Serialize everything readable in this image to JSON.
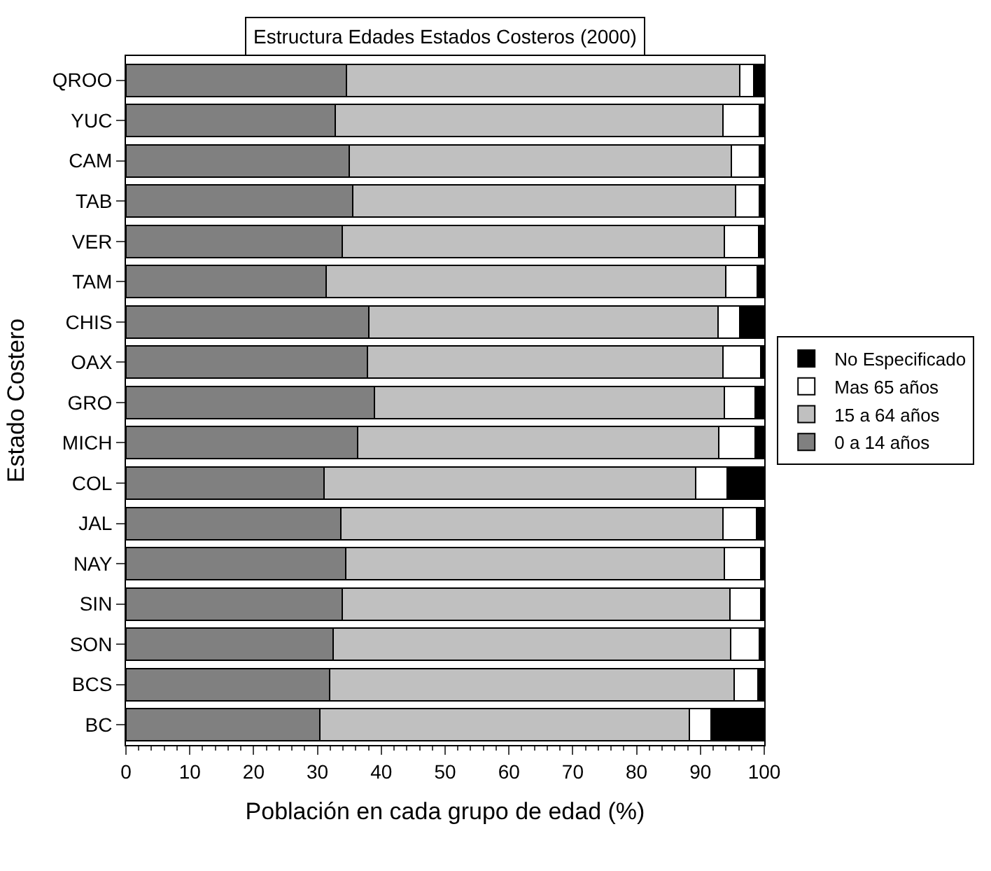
{
  "chart_data": {
    "type": "bar",
    "orientation": "horizontal",
    "stacked": true,
    "title": "Estructura Edades Estados Costeros (2000)",
    "xlabel": "Población en cada grupo de edad (%)",
    "ylabel": "Estado Costero",
    "categories": [
      "QROO",
      "YUC",
      "CAM",
      "TAB",
      "VER",
      "TAM",
      "CHIS",
      "OAX",
      "GRO",
      "MICH",
      "COL",
      "JAL",
      "NAY",
      "SIN",
      "SON",
      "BCS",
      "BC"
    ],
    "series": [
      {
        "name": "0 a 14 años",
        "color": "#808080",
        "values": [
          34.5,
          32.8,
          35.0,
          35.5,
          33.9,
          31.4,
          38.1,
          37.8,
          38.9,
          36.3,
          31.0,
          33.7,
          34.4,
          33.9,
          32.5,
          31.9,
          30.4
        ]
      },
      {
        "name": "15 a 64 años",
        "color": "#c0c0c0",
        "values": [
          61.7,
          60.7,
          59.8,
          60.0,
          59.9,
          62.6,
          54.7,
          55.7,
          54.8,
          56.6,
          58.3,
          59.8,
          59.3,
          60.7,
          62.2,
          63.4,
          57.9
        ]
      },
      {
        "name": "Mas 65 años",
        "color": "#ffffff",
        "values": [
          2.2,
          5.7,
          4.4,
          3.7,
          5.3,
          4.9,
          3.4,
          5.9,
          4.9,
          5.7,
          4.9,
          5.3,
          5.8,
          4.8,
          4.5,
          3.7,
          3.4
        ]
      },
      {
        "name": "No Especificado",
        "color": "#000000",
        "values": [
          1.6,
          0.8,
          0.8,
          0.8,
          0.9,
          1.1,
          3.8,
          0.6,
          1.4,
          1.4,
          5.8,
          1.2,
          0.5,
          0.6,
          0.8,
          1.0,
          8.3
        ]
      }
    ],
    "xlim": [
      0,
      100
    ],
    "xticks": [
      0,
      10,
      20,
      30,
      40,
      50,
      60,
      70,
      80,
      90,
      100
    ],
    "legend": "right"
  }
}
